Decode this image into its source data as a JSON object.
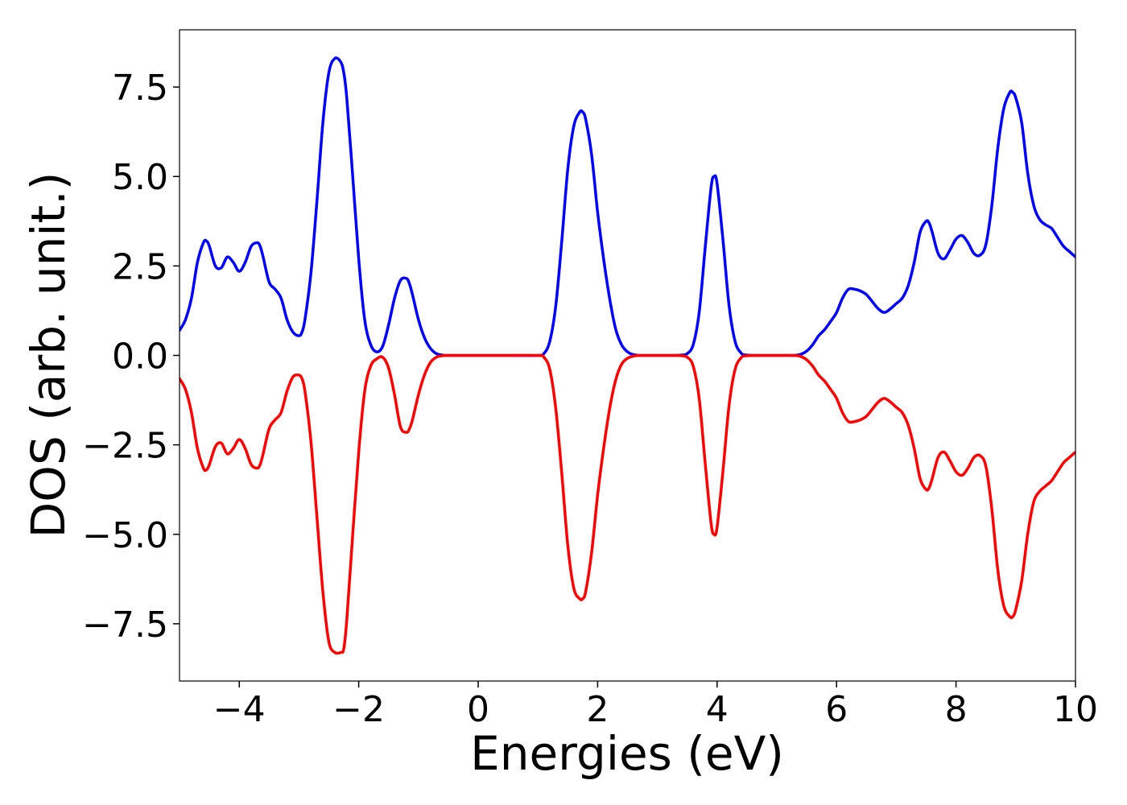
{
  "chart_data": {
    "type": "line",
    "title": "",
    "xlabel": "Energies (eV)",
    "ylabel": "DOS (arb. unit.)",
    "xlim": [
      -5,
      10
    ],
    "ylim": [
      -9.1,
      9.1
    ],
    "xticks": [
      -4,
      -2,
      0,
      2,
      4,
      6,
      8,
      10
    ],
    "xtick_labels": [
      "−4",
      "−2",
      "0",
      "2",
      "4",
      "6",
      "8",
      "10"
    ],
    "yticks": [
      -7.5,
      -5.0,
      -2.5,
      0.0,
      2.5,
      5.0,
      7.5
    ],
    "ytick_labels": [
      "−7.5",
      "−5.0",
      "−2.5",
      "0.0",
      "2.5",
      "5.0",
      "7.5"
    ],
    "grid": false,
    "legend": "none",
    "series": [
      {
        "color": "#0000ff",
        "x": [
          -5.0,
          -4.9,
          -4.8,
          -4.7,
          -4.6,
          -4.55,
          -4.5,
          -4.4,
          -4.3,
          -4.2,
          -4.1,
          -4.0,
          -3.9,
          -3.8,
          -3.7,
          -3.65,
          -3.6,
          -3.5,
          -3.4,
          -3.3,
          -3.2,
          -3.1,
          -3.0,
          -2.95,
          -2.9,
          -2.8,
          -2.7,
          -2.6,
          -2.5,
          -2.4,
          -2.3,
          -2.25,
          -2.2,
          -2.1,
          -2.0,
          -1.9,
          -1.8,
          -1.7,
          -1.6,
          -1.5,
          -1.4,
          -1.3,
          -1.2,
          -1.15,
          -1.1,
          -1.0,
          -0.9,
          -0.8,
          -0.7,
          -0.6,
          -0.5,
          0.0,
          0.5,
          1.0,
          1.1,
          1.2,
          1.3,
          1.4,
          1.5,
          1.6,
          1.7,
          1.75,
          1.8,
          1.9,
          2.0,
          2.1,
          2.2,
          2.3,
          2.4,
          2.5,
          2.6,
          2.7,
          3.0,
          3.3,
          3.4,
          3.5,
          3.6,
          3.7,
          3.8,
          3.9,
          3.95,
          4.0,
          4.1,
          4.2,
          4.3,
          4.4,
          4.5,
          4.8,
          5.1,
          5.3,
          5.4,
          5.5,
          5.6,
          5.7,
          5.8,
          5.9,
          6.0,
          6.1,
          6.2,
          6.3,
          6.4,
          6.5,
          6.6,
          6.7,
          6.8,
          6.9,
          7.0,
          7.1,
          7.2,
          7.3,
          7.4,
          7.5,
          7.55,
          7.6,
          7.7,
          7.8,
          7.9,
          8.0,
          8.1,
          8.2,
          8.3,
          8.4,
          8.5,
          8.6,
          8.7,
          8.8,
          8.9,
          8.95,
          9.0,
          9.1,
          9.2,
          9.3,
          9.4,
          9.5,
          9.6,
          9.7,
          9.8,
          9.9,
          10.0
        ],
        "values": [
          0.7,
          1.0,
          1.6,
          2.6,
          3.15,
          3.2,
          3.05,
          2.5,
          2.45,
          2.75,
          2.6,
          2.35,
          2.6,
          3.05,
          3.15,
          3.05,
          2.75,
          2.05,
          1.85,
          1.6,
          1.0,
          0.65,
          0.55,
          0.65,
          1.0,
          2.3,
          4.3,
          6.5,
          7.9,
          8.3,
          8.2,
          7.9,
          7.2,
          5.0,
          2.7,
          1.0,
          0.3,
          0.1,
          0.25,
          0.85,
          1.6,
          2.1,
          2.15,
          2.0,
          1.7,
          1.0,
          0.5,
          0.2,
          0.05,
          0.01,
          0.0,
          0.0,
          0.0,
          0.0,
          0.05,
          0.4,
          1.4,
          3.2,
          5.2,
          6.4,
          6.8,
          6.8,
          6.6,
          5.6,
          4.0,
          2.7,
          1.6,
          0.75,
          0.3,
          0.1,
          0.02,
          0.0,
          0.0,
          0.0,
          0.01,
          0.05,
          0.3,
          1.2,
          3.0,
          4.7,
          5.0,
          4.8,
          3.2,
          1.4,
          0.4,
          0.07,
          0.01,
          0.0,
          0.0,
          0.0,
          0.03,
          0.12,
          0.3,
          0.55,
          0.72,
          0.95,
          1.2,
          1.6,
          1.85,
          1.85,
          1.8,
          1.7,
          1.5,
          1.3,
          1.2,
          1.3,
          1.45,
          1.6,
          1.95,
          2.6,
          3.45,
          3.75,
          3.7,
          3.45,
          2.85,
          2.7,
          2.95,
          3.25,
          3.35,
          3.15,
          2.85,
          2.8,
          3.1,
          4.2,
          5.8,
          6.9,
          7.35,
          7.35,
          7.2,
          6.5,
          5.1,
          4.2,
          3.8,
          3.65,
          3.55,
          3.3,
          3.05,
          2.9,
          2.75
        ]
      },
      {
        "color": "#ff0000",
        "x": [
          -5.0,
          -4.9,
          -4.8,
          -4.7,
          -4.6,
          -4.55,
          -4.5,
          -4.4,
          -4.3,
          -4.2,
          -4.1,
          -4.0,
          -3.9,
          -3.8,
          -3.7,
          -3.65,
          -3.6,
          -3.5,
          -3.4,
          -3.3,
          -3.2,
          -3.1,
          -3.0,
          -2.95,
          -2.9,
          -2.8,
          -2.7,
          -2.6,
          -2.5,
          -2.4,
          -2.3,
          -2.25,
          -2.2,
          -2.1,
          -2.0,
          -1.9,
          -1.8,
          -1.7,
          -1.6,
          -1.5,
          -1.4,
          -1.3,
          -1.2,
          -1.15,
          -1.1,
          -1.0,
          -0.9,
          -0.8,
          -0.7,
          -0.6,
          -0.5,
          0.0,
          0.5,
          1.0,
          1.1,
          1.2,
          1.3,
          1.4,
          1.5,
          1.6,
          1.7,
          1.75,
          1.8,
          1.9,
          2.0,
          2.1,
          2.2,
          2.3,
          2.4,
          2.5,
          2.6,
          2.7,
          3.0,
          3.3,
          3.4,
          3.5,
          3.6,
          3.7,
          3.8,
          3.9,
          3.95,
          4.0,
          4.1,
          4.2,
          4.3,
          4.4,
          4.5,
          4.8,
          5.1,
          5.3,
          5.4,
          5.5,
          5.6,
          5.7,
          5.8,
          5.9,
          6.0,
          6.1,
          6.2,
          6.3,
          6.4,
          6.5,
          6.6,
          6.7,
          6.8,
          6.9,
          7.0,
          7.1,
          7.2,
          7.3,
          7.4,
          7.5,
          7.55,
          7.6,
          7.7,
          7.8,
          7.9,
          8.0,
          8.1,
          8.2,
          8.3,
          8.4,
          8.5,
          8.6,
          8.7,
          8.8,
          8.9,
          8.95,
          9.0,
          9.1,
          9.2,
          9.3,
          9.4,
          9.5,
          9.6,
          9.7,
          9.8,
          9.9,
          10.0
        ],
        "values": [
          -0.65,
          -0.95,
          -1.6,
          -2.6,
          -3.15,
          -3.2,
          -3.05,
          -2.55,
          -2.45,
          -2.75,
          -2.6,
          -2.35,
          -2.6,
          -3.05,
          -3.15,
          -3.05,
          -2.75,
          -2.05,
          -1.8,
          -1.6,
          -1.0,
          -0.6,
          -0.55,
          -0.65,
          -1.0,
          -2.4,
          -4.5,
          -6.6,
          -8.0,
          -8.3,
          -8.3,
          -8.2,
          -7.4,
          -5.0,
          -2.7,
          -1.0,
          -0.3,
          -0.1,
          -0.05,
          -0.35,
          -1.1,
          -2.0,
          -2.15,
          -2.05,
          -1.8,
          -1.1,
          -0.55,
          -0.2,
          -0.05,
          -0.01,
          0.0,
          0.0,
          0.0,
          0.0,
          -0.05,
          -0.4,
          -1.5,
          -3.3,
          -5.3,
          -6.5,
          -6.8,
          -6.8,
          -6.6,
          -5.5,
          -3.9,
          -2.6,
          -1.5,
          -0.7,
          -0.25,
          -0.08,
          -0.02,
          0.0,
          0.0,
          0.0,
          -0.01,
          -0.05,
          -0.3,
          -1.2,
          -3.0,
          -4.7,
          -5.0,
          -4.8,
          -3.2,
          -1.4,
          -0.4,
          -0.07,
          -0.01,
          0.0,
          0.0,
          0.0,
          -0.03,
          -0.12,
          -0.3,
          -0.55,
          -0.72,
          -0.95,
          -1.2,
          -1.6,
          -1.85,
          -1.85,
          -1.8,
          -1.7,
          -1.5,
          -1.3,
          -1.2,
          -1.3,
          -1.45,
          -1.6,
          -1.95,
          -2.6,
          -3.45,
          -3.75,
          -3.7,
          -3.45,
          -2.85,
          -2.7,
          -2.95,
          -3.25,
          -3.35,
          -3.15,
          -2.85,
          -2.8,
          -3.1,
          -4.3,
          -6.0,
          -7.0,
          -7.3,
          -7.3,
          -7.1,
          -6.3,
          -5.0,
          -4.1,
          -3.8,
          -3.65,
          -3.5,
          -3.25,
          -3.0,
          -2.85,
          -2.7
        ]
      }
    ]
  }
}
